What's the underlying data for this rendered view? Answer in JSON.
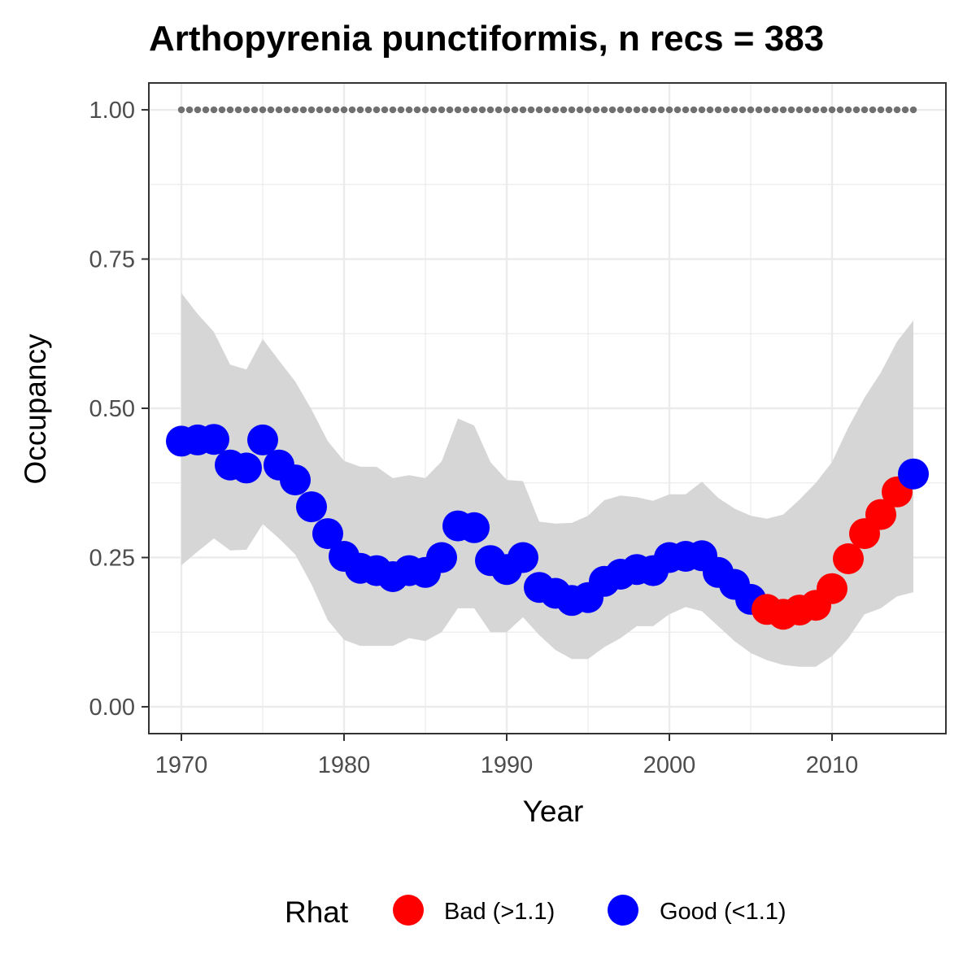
{
  "chart_data": {
    "type": "line",
    "title": "Arthopyrenia punctiformis, n recs = 383",
    "xlabel": "Year",
    "ylabel": "Occupancy",
    "xlim": [
      1968,
      2017
    ],
    "ylim": [
      -0.045,
      1.045
    ],
    "xticks": [
      "1970",
      "1980",
      "1990",
      "2000",
      "2010"
    ],
    "yticks": [
      "0.00",
      "0.25",
      "0.50",
      "0.75",
      "1.00"
    ],
    "grid": true,
    "colors": {
      "bad": "#ff0000",
      "good": "#0000ff",
      "ribbon": "#d6d6d6",
      "reference": "#707070",
      "gridline": "#ebebeb",
      "panel_border": "#333333"
    },
    "legend": {
      "title": "Rhat",
      "position": "bottom",
      "entries": [
        {
          "key": "bad",
          "label": "Bad (>1.1)"
        },
        {
          "key": "good",
          "label": "Good (<1.1)"
        }
      ]
    },
    "reference_line": {
      "y": 1.0,
      "style": "dotted"
    },
    "series": {
      "year": [
        1970,
        1971,
        1972,
        1973,
        1974,
        1975,
        1976,
        1977,
        1978,
        1979,
        1980,
        1981,
        1982,
        1983,
        1984,
        1985,
        1986,
        1987,
        1988,
        1989,
        1990,
        1991,
        1992,
        1993,
        1994,
        1995,
        1996,
        1997,
        1998,
        1999,
        2000,
        2001,
        2002,
        2003,
        2004,
        2005,
        2006,
        2007,
        2008,
        2009,
        2010,
        2011,
        2012,
        2013,
        2014,
        2015
      ],
      "mean": [
        0.445,
        0.447,
        0.448,
        0.405,
        0.4,
        0.447,
        0.405,
        0.38,
        0.335,
        0.29,
        0.252,
        0.232,
        0.228,
        0.218,
        0.228,
        0.225,
        0.25,
        0.303,
        0.3,
        0.245,
        0.23,
        0.25,
        0.2,
        0.19,
        0.178,
        0.183,
        0.21,
        0.222,
        0.23,
        0.228,
        0.25,
        0.252,
        0.253,
        0.225,
        0.205,
        0.18,
        0.163,
        0.155,
        0.162,
        0.17,
        0.198,
        0.248,
        0.29,
        0.322,
        0.36,
        0.39
      ],
      "lower": [
        0.237,
        0.26,
        0.282,
        0.262,
        0.263,
        0.306,
        0.282,
        0.255,
        0.205,
        0.145,
        0.112,
        0.102,
        0.102,
        0.102,
        0.115,
        0.11,
        0.125,
        0.165,
        0.165,
        0.125,
        0.125,
        0.15,
        0.12,
        0.095,
        0.08,
        0.08,
        0.1,
        0.115,
        0.135,
        0.135,
        0.155,
        0.167,
        0.16,
        0.135,
        0.11,
        0.09,
        0.078,
        0.07,
        0.067,
        0.067,
        0.085,
        0.115,
        0.155,
        0.165,
        0.185,
        0.192
      ],
      "upper": [
        0.693,
        0.658,
        0.628,
        0.573,
        0.565,
        0.616,
        0.58,
        0.545,
        0.498,
        0.445,
        0.412,
        0.402,
        0.402,
        0.383,
        0.388,
        0.383,
        0.411,
        0.483,
        0.471,
        0.41,
        0.38,
        0.378,
        0.31,
        0.307,
        0.308,
        0.32,
        0.346,
        0.354,
        0.351,
        0.345,
        0.356,
        0.356,
        0.377,
        0.35,
        0.332,
        0.32,
        0.315,
        0.322,
        0.347,
        0.375,
        0.41,
        0.468,
        0.518,
        0.56,
        0.612,
        0.647
      ],
      "rhat": [
        "good",
        "good",
        "good",
        "good",
        "good",
        "good",
        "good",
        "good",
        "good",
        "good",
        "good",
        "good",
        "good",
        "good",
        "good",
        "good",
        "good",
        "good",
        "good",
        "good",
        "good",
        "good",
        "good",
        "good",
        "good",
        "good",
        "good",
        "good",
        "good",
        "good",
        "good",
        "good",
        "good",
        "good",
        "good",
        "good",
        "bad",
        "bad",
        "bad",
        "bad",
        "bad",
        "bad",
        "bad",
        "bad",
        "bad",
        "good"
      ]
    }
  }
}
